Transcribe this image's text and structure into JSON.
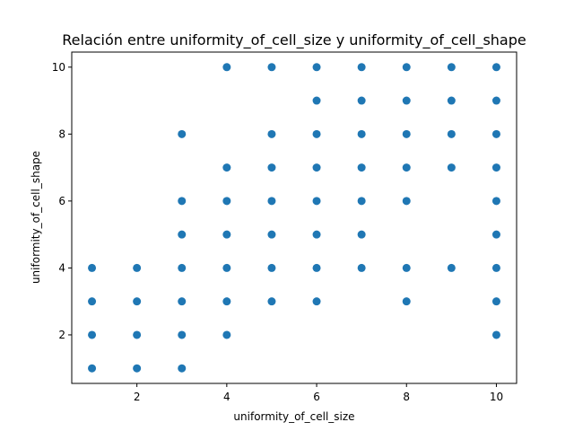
{
  "chart_data": {
    "type": "scatter",
    "title": "Relación entre uniformity_of_cell_size y uniformity_of_cell_shape",
    "xlabel": "uniformity_of_cell_size",
    "ylabel": "uniformity_of_cell_shape",
    "xlim": [
      0.55,
      10.45
    ],
    "ylim": [
      0.55,
      10.45
    ],
    "xticks": [
      2,
      4,
      6,
      8,
      10
    ],
    "yticks": [
      2,
      4,
      6,
      8,
      10
    ],
    "grid": false,
    "color": "#1f77b4",
    "points": [
      [
        1,
        1
      ],
      [
        1,
        2
      ],
      [
        1,
        3
      ],
      [
        1,
        4
      ],
      [
        2,
        1
      ],
      [
        2,
        2
      ],
      [
        2,
        3
      ],
      [
        2,
        4
      ],
      [
        3,
        1
      ],
      [
        3,
        2
      ],
      [
        3,
        3
      ],
      [
        3,
        4
      ],
      [
        3,
        5
      ],
      [
        3,
        6
      ],
      [
        3,
        8
      ],
      [
        4,
        2
      ],
      [
        4,
        3
      ],
      [
        4,
        4
      ],
      [
        4,
        5
      ],
      [
        4,
        6
      ],
      [
        4,
        7
      ],
      [
        4,
        10
      ],
      [
        5,
        3
      ],
      [
        5,
        4
      ],
      [
        5,
        5
      ],
      [
        5,
        6
      ],
      [
        5,
        7
      ],
      [
        5,
        8
      ],
      [
        5,
        10
      ],
      [
        6,
        3
      ],
      [
        6,
        4
      ],
      [
        6,
        5
      ],
      [
        6,
        6
      ],
      [
        6,
        7
      ],
      [
        6,
        8
      ],
      [
        6,
        9
      ],
      [
        6,
        10
      ],
      [
        7,
        4
      ],
      [
        7,
        5
      ],
      [
        7,
        6
      ],
      [
        7,
        7
      ],
      [
        7,
        8
      ],
      [
        7,
        9
      ],
      [
        7,
        10
      ],
      [
        8,
        3
      ],
      [
        8,
        4
      ],
      [
        8,
        6
      ],
      [
        8,
        7
      ],
      [
        8,
        8
      ],
      [
        8,
        9
      ],
      [
        8,
        10
      ],
      [
        9,
        4
      ],
      [
        9,
        7
      ],
      [
        9,
        8
      ],
      [
        9,
        9
      ],
      [
        9,
        10
      ],
      [
        10,
        2
      ],
      [
        10,
        3
      ],
      [
        10,
        4
      ],
      [
        10,
        5
      ],
      [
        10,
        6
      ],
      [
        10,
        7
      ],
      [
        10,
        8
      ],
      [
        10,
        9
      ],
      [
        10,
        10
      ]
    ]
  }
}
